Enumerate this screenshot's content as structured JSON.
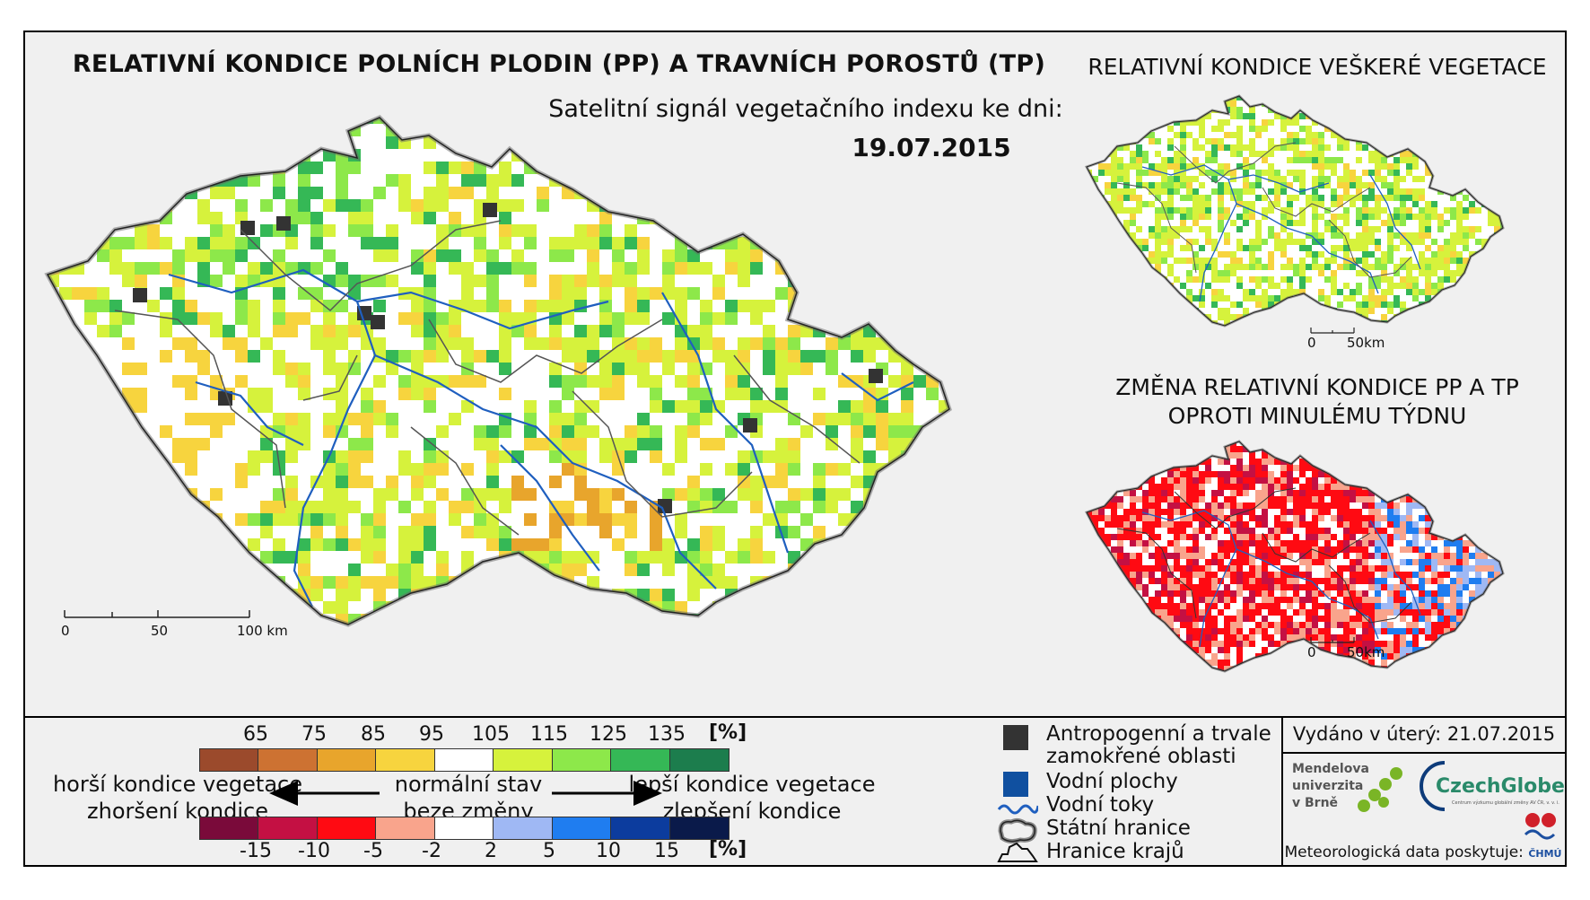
{
  "titles": {
    "main": "RELATIVNÍ KONDICE POLNÍCH PLODIN (PP) A TRAVNÍCH POROSTŮ (TP)",
    "subtitle": "Satelitní signál vegetačního indexu ke dni:",
    "date": "19.07.2015",
    "right_top": "RELATIVNÍ KONDICE VEŠKERÉ VEGETACE",
    "right_bottom_line1": "ZMĚNA RELATIVNÍ KONDICE PP A TP",
    "right_bottom_line2": "OPROTI MINULÉMU TÝDNU"
  },
  "scalebars": {
    "main": {
      "labels": [
        "0",
        "50",
        "100 km"
      ]
    },
    "small_top": {
      "labels": [
        "0",
        "50km"
      ]
    },
    "small_bottom": {
      "labels": [
        "0",
        "50km"
      ]
    }
  },
  "legend": {
    "condition": {
      "ticks": [
        "65",
        "75",
        "85",
        "95",
        "105",
        "115",
        "125",
        "135"
      ],
      "unit": "[%]",
      "colors": [
        "#9b4a2c",
        "#cd7232",
        "#e8a52c",
        "#f7d43e",
        "#ffffff",
        "#d6f23c",
        "#8de84a",
        "#35b856",
        "#1c7d4d"
      ]
    },
    "change": {
      "ticks": [
        "-15",
        "-10",
        "-5",
        "-2",
        "2",
        "5",
        "10",
        "15"
      ],
      "unit": "[%]",
      "colors": [
        "#7a0a3a",
        "#c41043",
        "#ff0a12",
        "#f9a48c",
        "#ffffff",
        "#9fb8f4",
        "#1f7df0",
        "#0c3c9e",
        "#0a1a4a"
      ]
    },
    "left_top": "horší kondice vegetace",
    "left_bottom": "zhoršení kondice",
    "mid_top": "normální stav",
    "mid_bottom": "beze změny",
    "right_top": "lepší kondice vegetace",
    "right_bottom": "zlepšení kondice"
  },
  "symbols": {
    "anthro_line1": "Antropogenní a trvale",
    "anthro_line2": "zamokřené oblasti",
    "water": "Vodní plochy",
    "rivers": "Vodní toky",
    "border": "Státní hranice",
    "regions": "Hranice krajů"
  },
  "info": {
    "issued": "Vydáno v úterý: 21.07.2015",
    "mendel_line1": "Mendelova",
    "mendel_line2": "univerzita",
    "mendel_line3": "v Brně",
    "czechglobe": "CzechGlobe",
    "czechglobe_sub": "Centrum výzkumu globální změny AV ČR, v. v. i.",
    "chmu": "ČHMÚ",
    "meteo": "Meteorologická data poskytuje:"
  },
  "colors": {
    "river": "#1f5fbf",
    "anthro": "#333333",
    "water": "#1050a0"
  }
}
